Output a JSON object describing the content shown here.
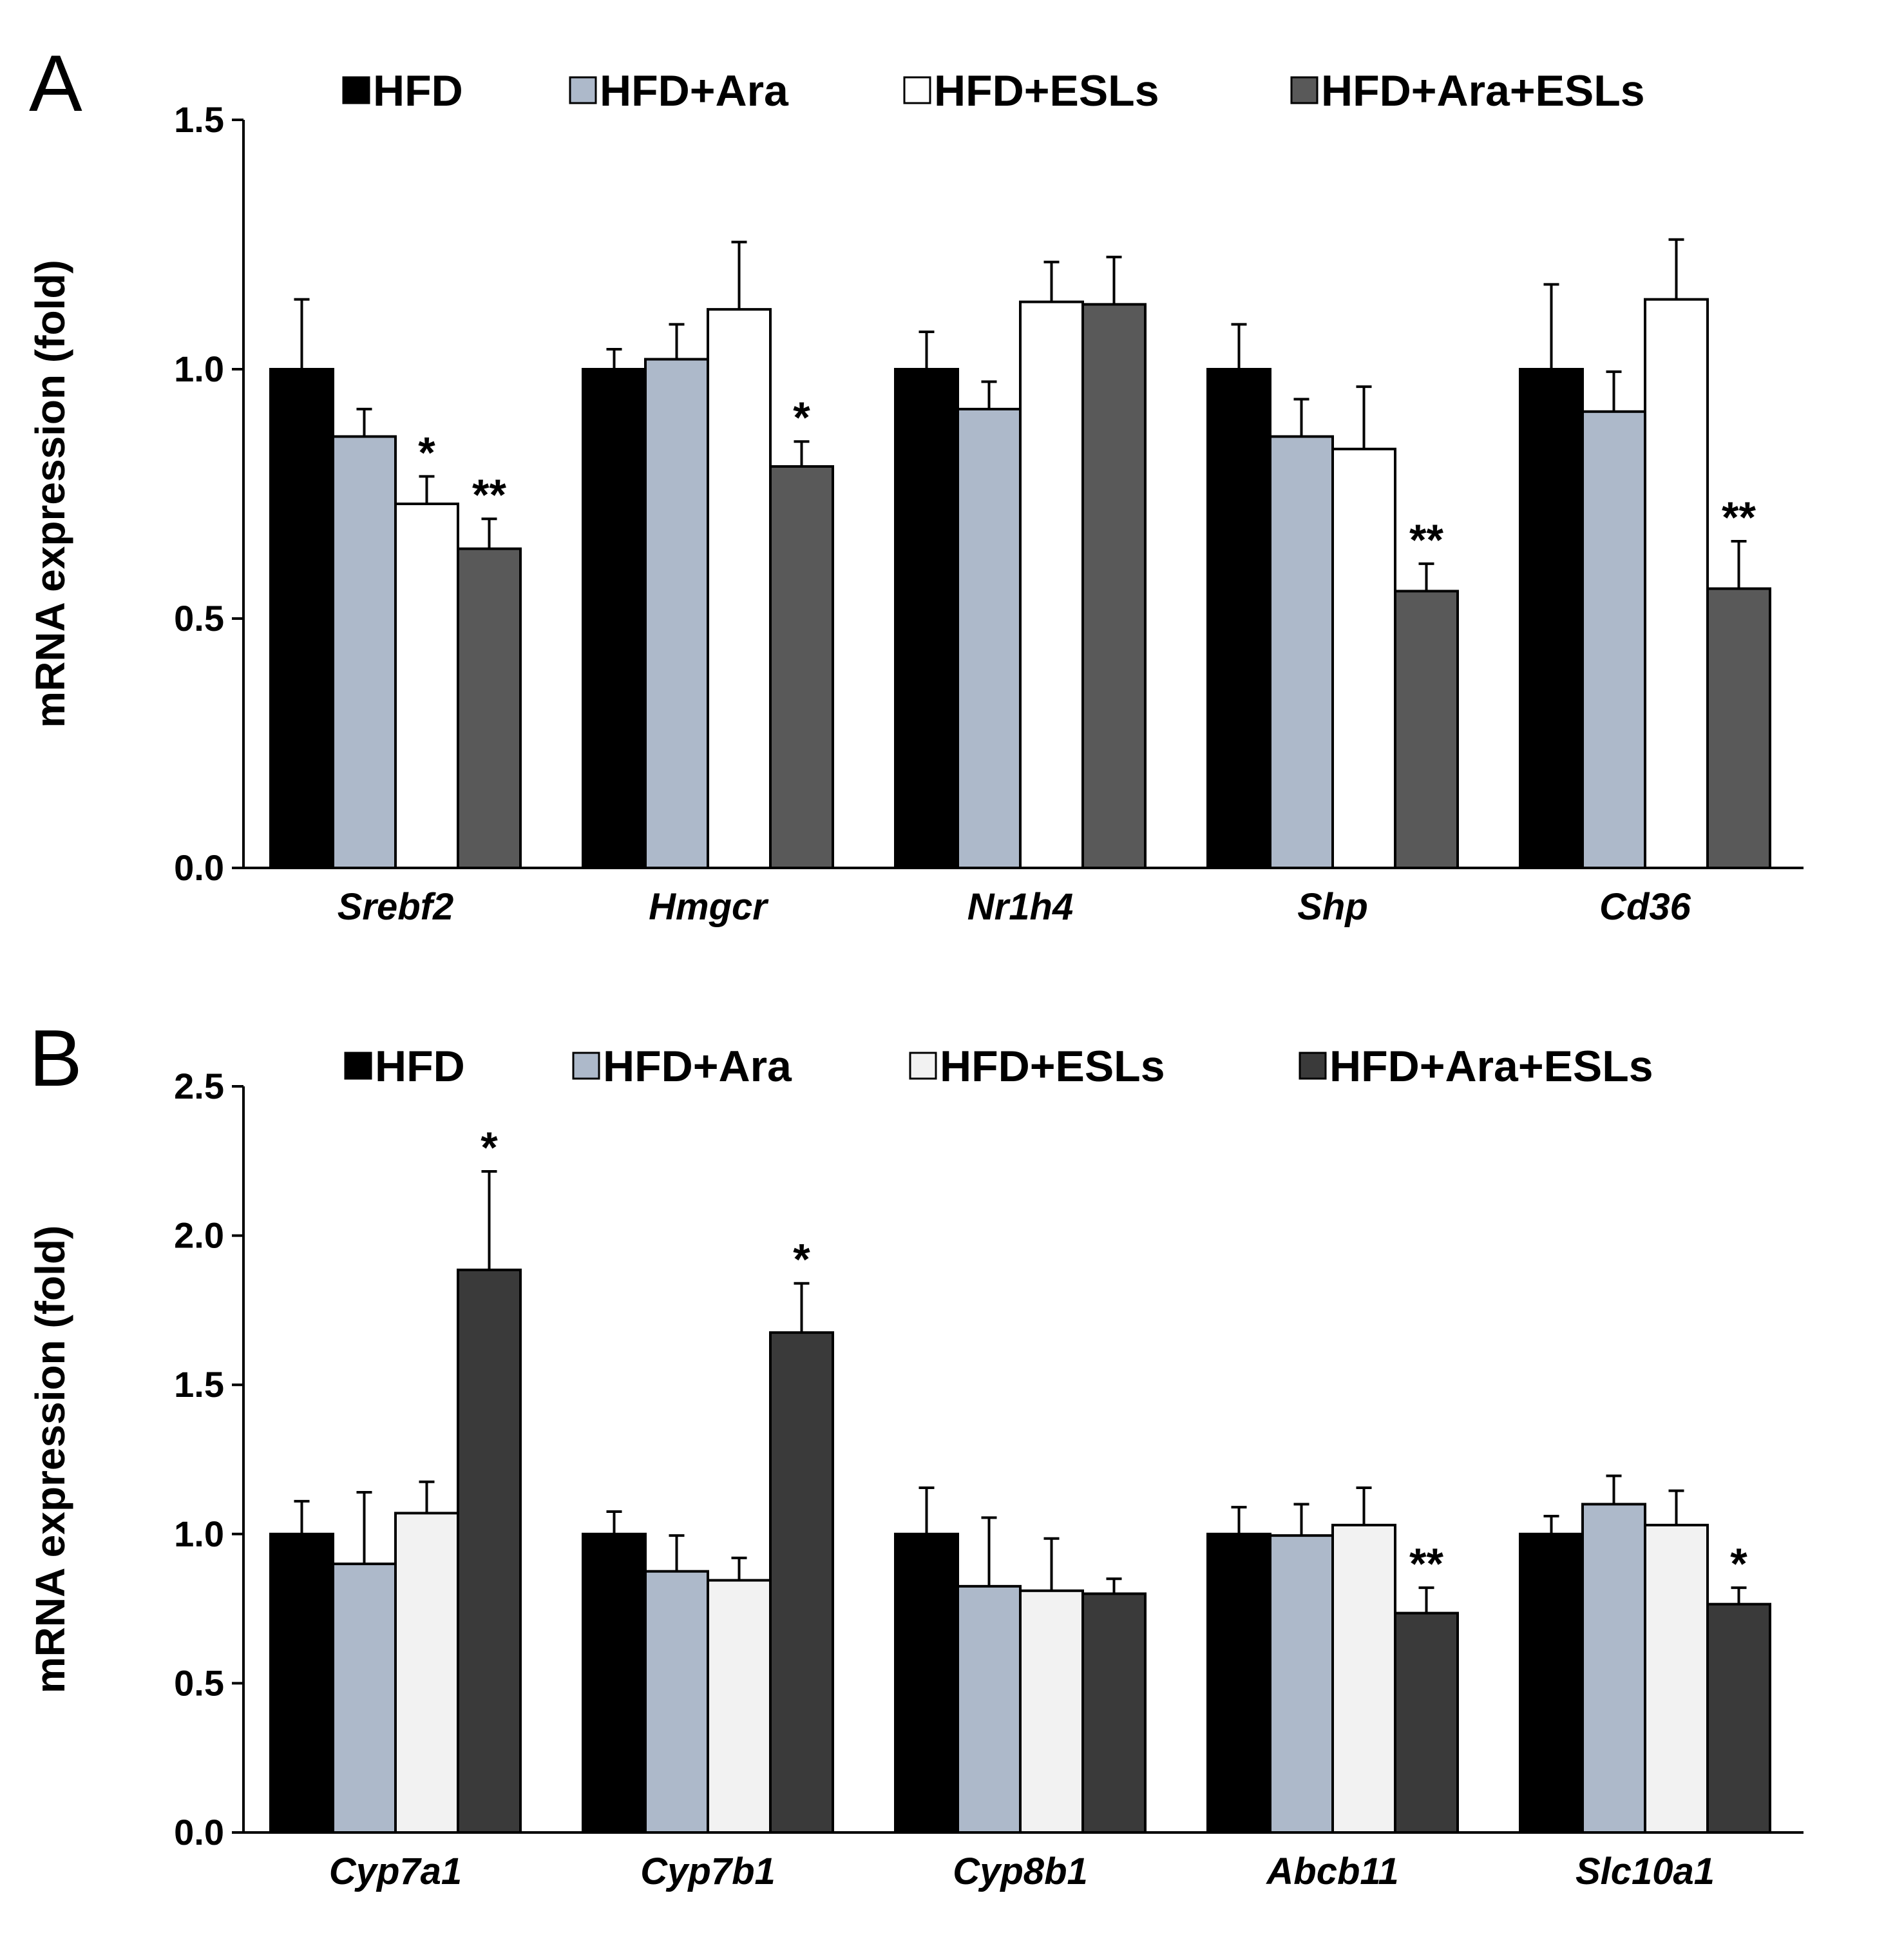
{
  "chart_data": [
    {
      "panel_label": "A",
      "type": "bar",
      "ylabel": "mRNA expression (fold)",
      "ylim": [
        0,
        1.5
      ],
      "yticks": [
        "0.0",
        "0.5",
        "1.0",
        "1.5"
      ],
      "categories": [
        "Srebf2",
        "Hmgcr",
        "Nr1h4",
        "Shp",
        "Cd36"
      ],
      "legend_position": "top",
      "series": [
        {
          "name": "HFD",
          "color": "#000000",
          "values": [
            1.0,
            1.0,
            1.0,
            1.0,
            1.0
          ],
          "errors": [
            0.14,
            0.04,
            0.075,
            0.09,
            0.17
          ],
          "significance": [
            "",
            "",
            "",
            "",
            ""
          ]
        },
        {
          "name": "HFD+Ara",
          "color": "#adb9ca",
          "values": [
            0.865,
            1.02,
            0.92,
            0.865,
            0.915
          ],
          "errors": [
            0.055,
            0.07,
            0.055,
            0.075,
            0.08
          ],
          "significance": [
            "",
            "",
            "",
            "",
            ""
          ]
        },
        {
          "name": "HFD+ESLs",
          "color": "#ffffff",
          "values": [
            0.73,
            1.12,
            1.135,
            0.84,
            1.14
          ],
          "errors": [
            0.055,
            0.135,
            0.08,
            0.125,
            0.12
          ],
          "significance": [
            "*",
            "",
            "",
            "",
            ""
          ]
        },
        {
          "name": "HFD+Ara+ESLs",
          "color": "#595959",
          "values": [
            0.64,
            0.805,
            1.13,
            0.555,
            0.56
          ],
          "errors": [
            0.06,
            0.05,
            0.095,
            0.055,
            0.095
          ],
          "significance": [
            "**",
            "*",
            "",
            "**",
            "**"
          ]
        }
      ]
    },
    {
      "panel_label": "B",
      "type": "bar",
      "ylabel": "mRNA expression (fold)",
      "ylim": [
        0,
        2.5
      ],
      "yticks": [
        "0.0",
        "0.5",
        "1.0",
        "1.5",
        "2.0",
        "2.5"
      ],
      "categories": [
        "Cyp7a1",
        "Cyp7b1",
        "Cyp8b1",
        "Abcb11",
        "Slc10a1"
      ],
      "legend_position": "top",
      "series": [
        {
          "name": "HFD",
          "color": "#000000",
          "values": [
            1.0,
            1.0,
            1.0,
            1.0,
            1.0
          ],
          "errors": [
            0.11,
            0.075,
            0.155,
            0.09,
            0.06
          ],
          "significance": [
            "",
            "",
            "",
            "",
            ""
          ]
        },
        {
          "name": "HFD+Ara",
          "color": "#adb9ca",
          "values": [
            0.9,
            0.875,
            0.825,
            0.995,
            1.1
          ],
          "errors": [
            0.24,
            0.12,
            0.23,
            0.105,
            0.095
          ],
          "significance": [
            "",
            "",
            "",
            "",
            ""
          ]
        },
        {
          "name": "HFD+ESLs",
          "color": "#f2f2f2",
          "values": [
            1.07,
            0.845,
            0.81,
            1.03,
            1.03
          ],
          "errors": [
            0.105,
            0.075,
            0.175,
            0.125,
            0.115
          ],
          "significance": [
            "",
            "",
            "",
            "",
            ""
          ]
        },
        {
          "name": "HFD+Ara+ESLs",
          "color": "#3a3a3a",
          "values": [
            1.885,
            1.675,
            0.8,
            0.735,
            0.765
          ],
          "errors": [
            0.33,
            0.165,
            0.05,
            0.085,
            0.055
          ],
          "significance": [
            "*",
            "*",
            "",
            "**",
            "*"
          ]
        }
      ]
    }
  ]
}
